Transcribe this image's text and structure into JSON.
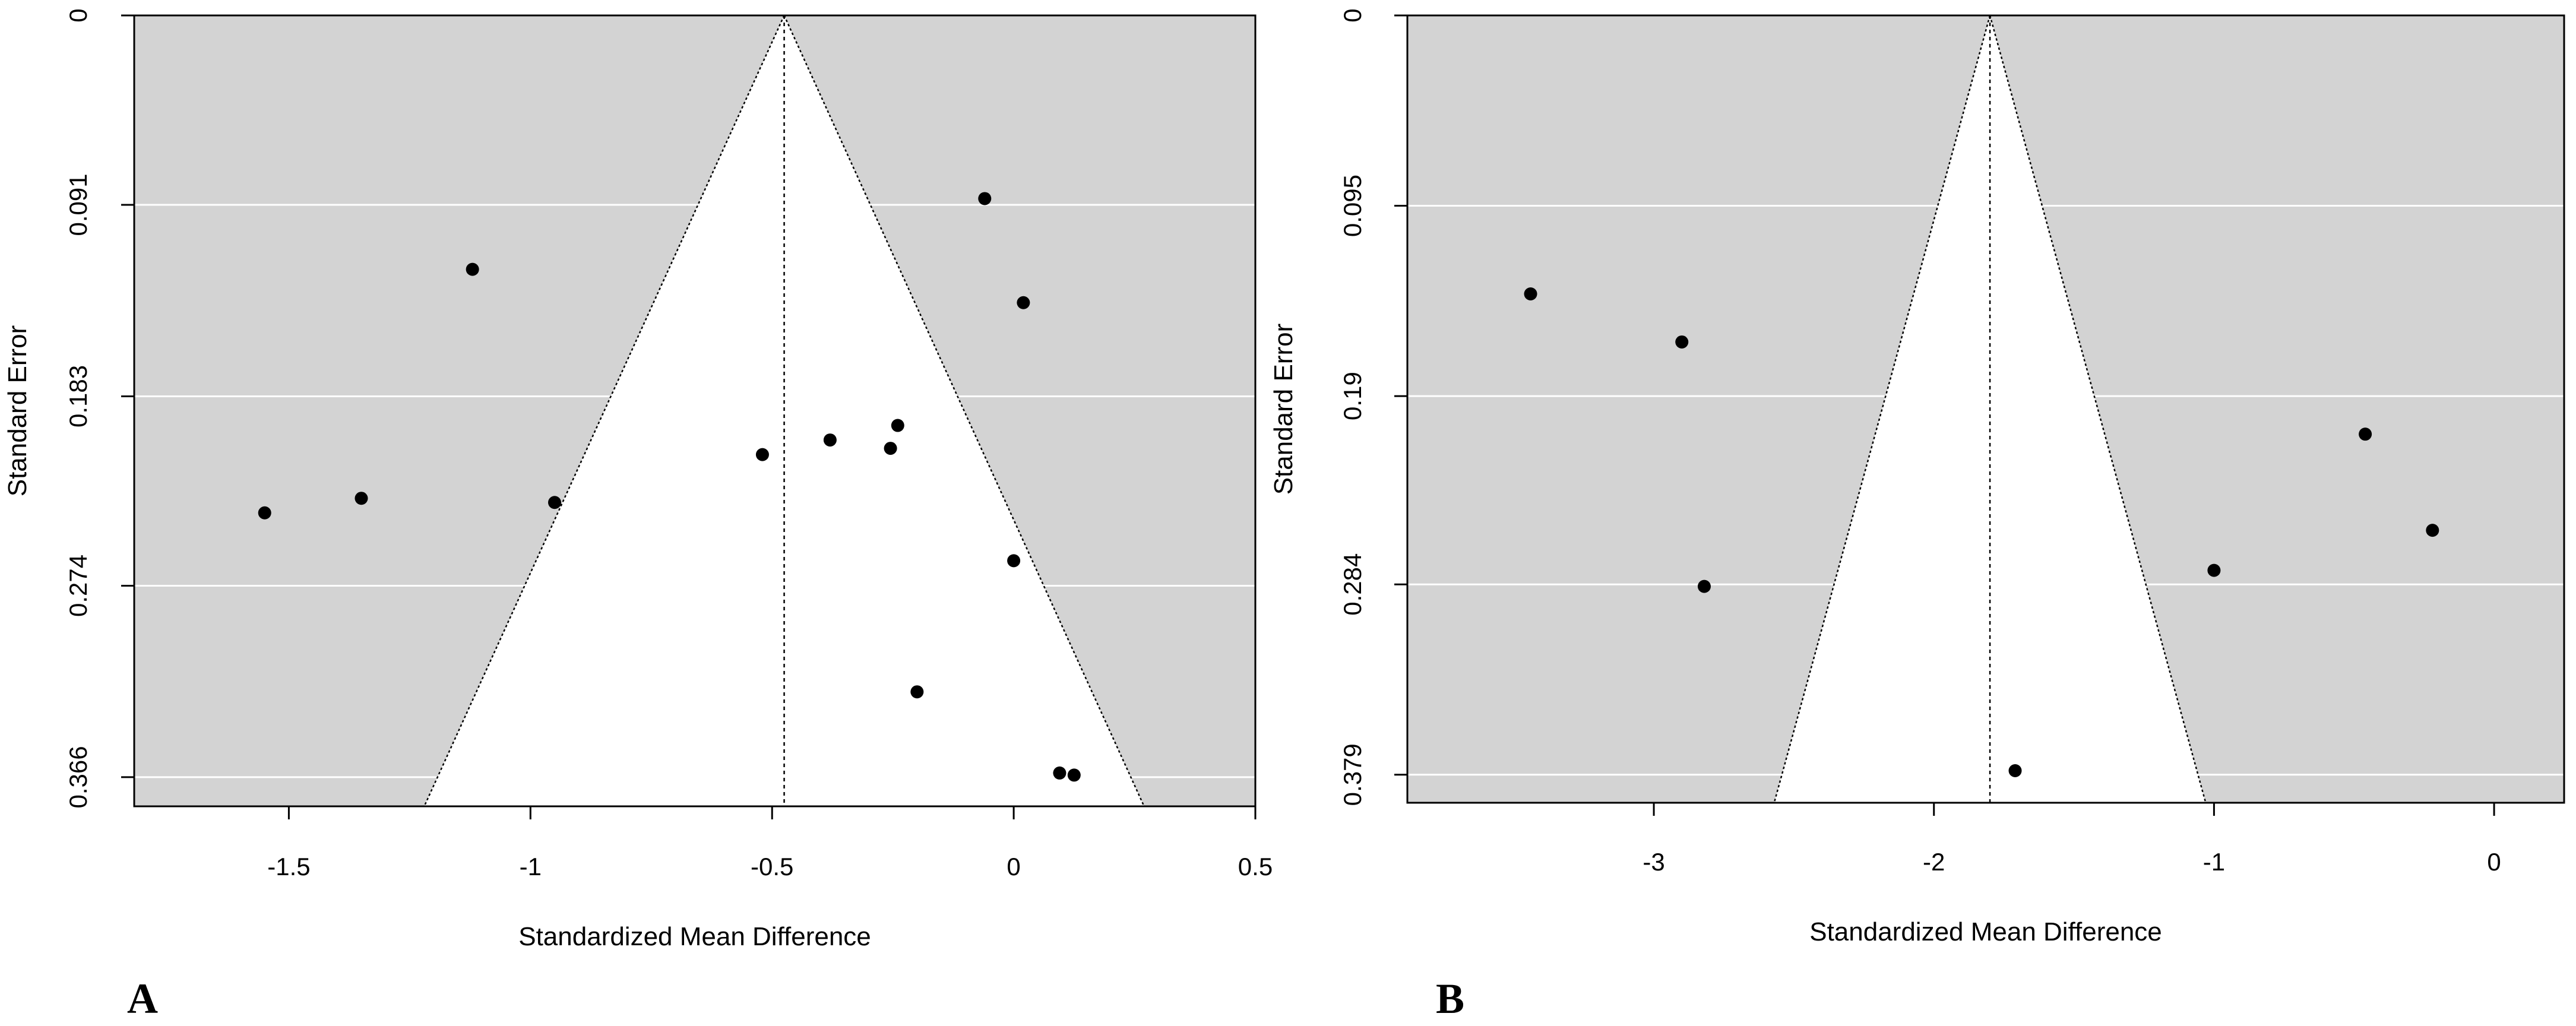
{
  "chart_data": [
    {
      "type": "scatter",
      "subtype": "funnel-plot",
      "panel_label": "A",
      "xlabel": "Standardized Mean Difference",
      "ylabel": "Standard Error",
      "xlim": [
        -1.82,
        0.5
      ],
      "ylim": [
        0,
        0.38
      ],
      "y_reversed": true,
      "x_ticks": [
        -1.5,
        -1,
        -0.5,
        0,
        0.5
      ],
      "x_tick_labels": [
        "-1.5",
        "-1",
        "-0.5",
        "0",
        "0.5"
      ],
      "y_ticks": [
        0,
        0.091,
        0.183,
        0.274,
        0.366
      ],
      "y_tick_labels": [
        "0",
        "0.091",
        "0.183",
        "0.274",
        "0.366"
      ],
      "pooled_estimate": -0.475,
      "funnel_width_per_se": 1.96,
      "background_color": "#d3d3d3",
      "funnel_fill": "#ffffff",
      "grid_color": "#ffffff",
      "point_color": "#000000",
      "points": [
        {
          "x": -1.55,
          "y": 0.239
        },
        {
          "x": -1.35,
          "y": 0.232
        },
        {
          "x": -1.12,
          "y": 0.122
        },
        {
          "x": -0.95,
          "y": 0.234
        },
        {
          "x": -0.52,
          "y": 0.211
        },
        {
          "x": -0.38,
          "y": 0.204
        },
        {
          "x": -0.255,
          "y": 0.208
        },
        {
          "x": -0.24,
          "y": 0.197
        },
        {
          "x": -0.2,
          "y": 0.325
        },
        {
          "x": -0.06,
          "y": 0.088
        },
        {
          "x": 0.0,
          "y": 0.262
        },
        {
          "x": 0.02,
          "y": 0.138
        },
        {
          "x": 0.095,
          "y": 0.364
        },
        {
          "x": 0.125,
          "y": 0.365
        }
      ]
    },
    {
      "type": "scatter",
      "subtype": "funnel-plot",
      "panel_label": "B",
      "xlabel": "Standardized Mean Difference",
      "ylabel": "Standard Error",
      "xlim": [
        -3.88,
        0.25
      ],
      "ylim": [
        0,
        0.393
      ],
      "y_reversed": true,
      "x_ticks": [
        -3,
        -2,
        -1,
        0
      ],
      "x_tick_labels": [
        "-3",
        "-2",
        "-1",
        "0"
      ],
      "y_ticks": [
        0,
        0.095,
        0.19,
        0.284,
        0.379
      ],
      "y_tick_labels": [
        "0",
        "0.095",
        "0.19",
        "0.284",
        "0.379"
      ],
      "pooled_estimate": -1.8,
      "funnel_width_per_se": 1.96,
      "background_color": "#d3d3d3",
      "funnel_fill": "#ffffff",
      "grid_color": "#ffffff",
      "point_color": "#000000",
      "points": [
        {
          "x": -3.44,
          "y": 0.139
        },
        {
          "x": -2.9,
          "y": 0.163
        },
        {
          "x": -2.82,
          "y": 0.285
        },
        {
          "x": -1.71,
          "y": 0.377
        },
        {
          "x": -1.0,
          "y": 0.277
        },
        {
          "x": -0.46,
          "y": 0.209
        },
        {
          "x": -0.22,
          "y": 0.257
        }
      ]
    }
  ]
}
